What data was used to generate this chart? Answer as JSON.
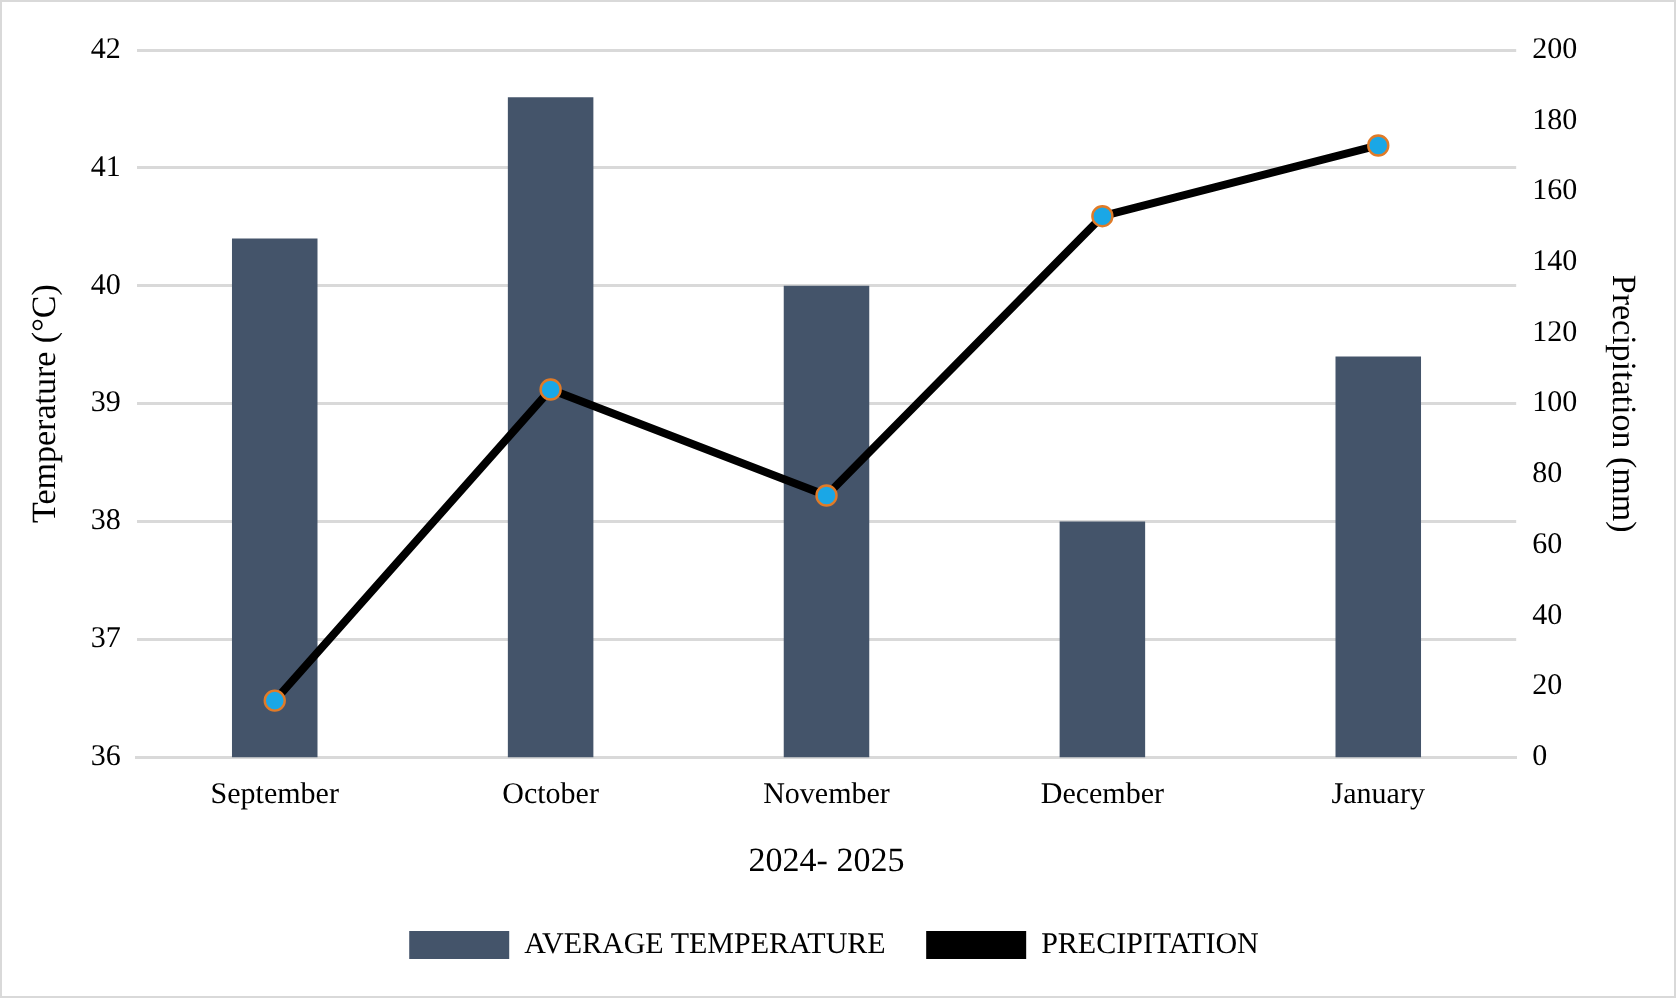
{
  "chart_data": {
    "type": "bar",
    "categories": [
      "September",
      "October",
      "November",
      "December",
      "January"
    ],
    "xlabel": "2024- 2025",
    "ylabel": "Temperature (°C)",
    "y2label": "Precipitation (mm)",
    "series": [
      {
        "name": "AVERAGE TEMPERATURE",
        "color": "#44546a",
        "values": [
          40.4,
          41.6,
          40.0,
          38.0,
          39.4
        ]
      },
      {
        "name": "PRECIPITATION",
        "type": "line",
        "axis": "y2",
        "color": "#000000",
        "colors": [
          "#1aa7e6",
          "#1aa7e6",
          "#1aa7e6",
          "#1aa7e6",
          "#1aa7e6"
        ],
        "values": [
          16,
          104,
          74,
          153,
          173
        ]
      }
    ],
    "ylim": [
      36,
      42
    ],
    "yticks": [
      36,
      37,
      38,
      39,
      40,
      41,
      42
    ],
    "y2lim": [
      0,
      200
    ],
    "y2ticks": [
      0,
      20,
      40,
      60,
      80,
      100,
      120,
      140,
      160,
      180,
      200
    ],
    "grid": "y",
    "legend": "bottom",
    "marker": "circle",
    "line_style": "solid"
  }
}
